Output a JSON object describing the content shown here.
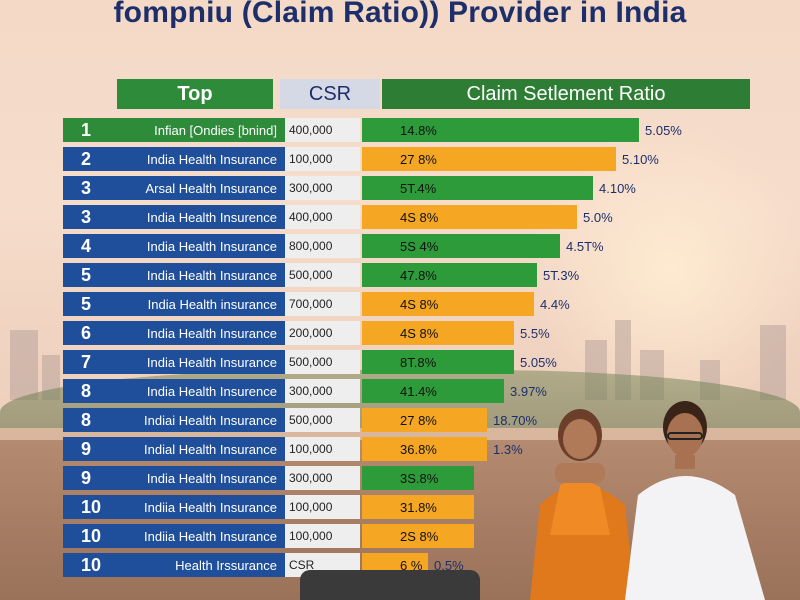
{
  "title": "fompniu (Claim Ratio)) Provider in India",
  "headers": {
    "top": "Top",
    "csr": "CSR",
    "ratio": "Claim Setlement Ratio"
  },
  "rows": [
    {
      "rank": "1",
      "name": "Infian [Ondies [bnind]",
      "amount": "400,000",
      "pct": "14.8%",
      "value": "5.05%",
      "rank_color": "green",
      "bar_color": "#2e9b3a",
      "level": 0.84
    },
    {
      "rank": "2",
      "name": "India Health Insurance",
      "amount": "100,000",
      "pct": "27 8%",
      "value": "5.10%",
      "rank_color": "blue",
      "bar_color": "#f5a623",
      "level": 0.77
    },
    {
      "rank": "3",
      "name": "Arsal Health Insurance",
      "amount": "300,000",
      "pct": "5T.4%",
      "value": "4.10%",
      "rank_color": "blue",
      "bar_color": "#2e9b3a",
      "level": 0.7
    },
    {
      "rank": "3",
      "name": "India Health Insurence",
      "amount": "400,000",
      "pct": "4S 8%",
      "value": "5.0%",
      "rank_color": "blue",
      "bar_color": "#f5a623",
      "level": 0.65
    },
    {
      "rank": "4",
      "name": "India Health Insurance",
      "amount": "800,000",
      "pct": "5S 4%",
      "value": "4.5T%",
      "rank_color": "blue",
      "bar_color": "#2e9b3a",
      "level": 0.6
    },
    {
      "rank": "5",
      "name": "India Health Insurance",
      "amount": "500,000",
      "pct": "47.8%",
      "value": "5T.3%",
      "rank_color": "blue",
      "bar_color": "#2e9b3a",
      "level": 0.53
    },
    {
      "rank": "5",
      "name": "India Health insurance",
      "amount": "700,000",
      "pct": "4S 8%",
      "value": "4.4%",
      "rank_color": "blue",
      "bar_color": "#f5a623",
      "level": 0.52
    },
    {
      "rank": "6",
      "name": "India Health Insurance",
      "amount": "200,000",
      "pct": "4S 8%",
      "value": "5.5%",
      "rank_color": "blue",
      "bar_color": "#f5a623",
      "level": 0.46
    },
    {
      "rank": "7",
      "name": "India Health Insurance",
      "amount": "500,000",
      "pct": "8T.8%",
      "value": "5.05%",
      "rank_color": "blue",
      "bar_color": "#2e9b3a",
      "level": 0.46
    },
    {
      "rank": "8",
      "name": "India Health Insurence",
      "amount": "300,000",
      "pct": "41.4%",
      "value": "3.97%",
      "rank_color": "blue",
      "bar_color": "#2e9b3a",
      "level": 0.43
    },
    {
      "rank": "8",
      "name": "Indiai Health Insurance",
      "amount": "500,000",
      "pct": "27 8%",
      "value": "18.70%",
      "rank_color": "blue",
      "bar_color": "#f5a623",
      "level": 0.38
    },
    {
      "rank": "9",
      "name": "Indial Health Insurance",
      "amount": "100,000",
      "pct": "36.8%",
      "value": "1.3%",
      "rank_color": "blue",
      "bar_color": "#f5a623",
      "level": 0.38
    },
    {
      "rank": "9",
      "name": "India Health Insurance",
      "amount": "300,000",
      "pct": "3S.8%",
      "value": "",
      "rank_color": "blue",
      "bar_color": "#2e9b3a",
      "level": 0.34
    },
    {
      "rank": "10",
      "name": "Indiia Health Insurance",
      "amount": "100,000",
      "pct": "31.8%",
      "value": "",
      "rank_color": "blue",
      "bar_color": "#f5a623",
      "level": 0.34
    },
    {
      "rank": "10",
      "name": "Indiia Health Insurance",
      "amount": "100,000",
      "pct": "2S 8%",
      "value": "",
      "rank_color": "blue",
      "bar_color": "#f5a623",
      "level": 0.34
    },
    {
      "rank": "10",
      "name": "Health Irssurance",
      "amount": "CSR",
      "pct": "6 %",
      "value": "0.5%",
      "rank_color": "blue",
      "bar_color": "#f5a623",
      "level": 0.2
    }
  ]
}
